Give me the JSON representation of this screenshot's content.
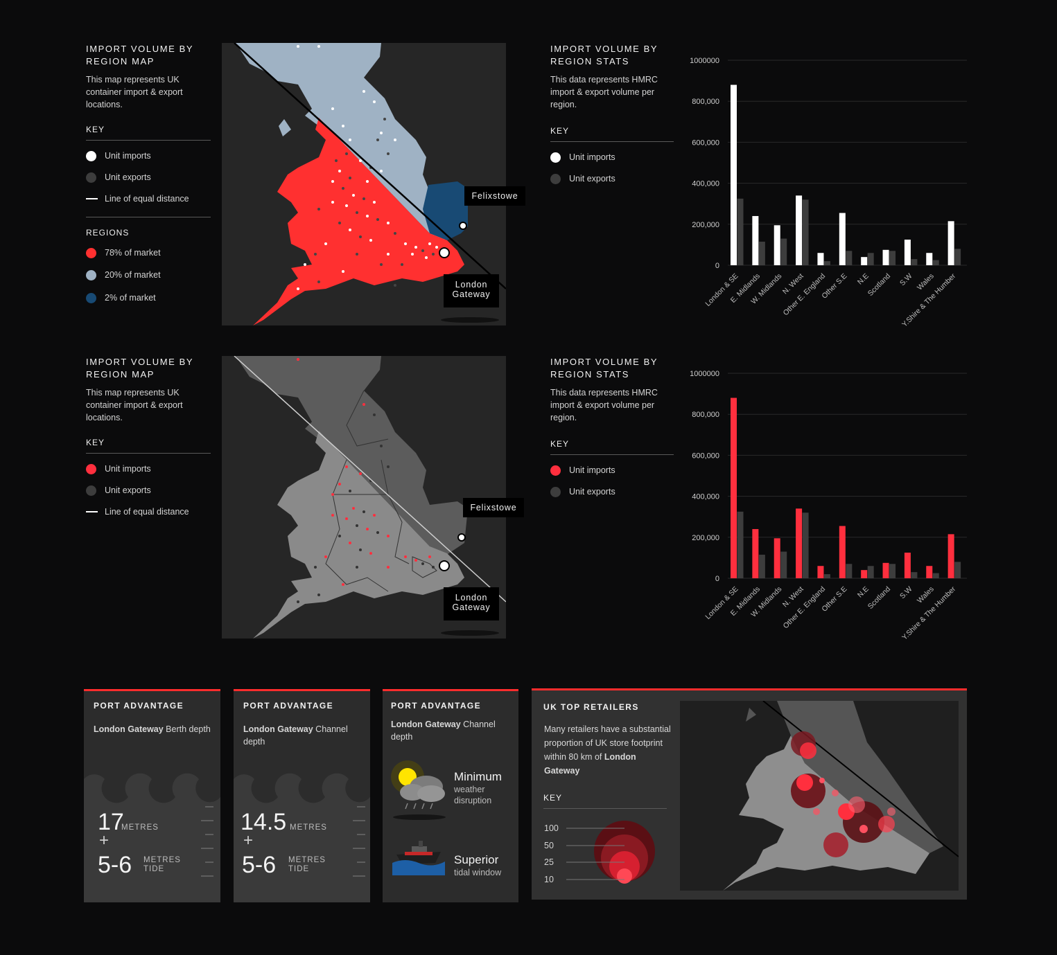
{
  "colors": {
    "import_white": "#ffffff",
    "import_red": "#ff2f3e",
    "export_grey": "#3d3d3d",
    "region_red": "#ff3030",
    "region_lightblue": "#9fb2c4",
    "region_darkblue": "#184a74",
    "accent": "#ff2d2d"
  },
  "top_map_panel": {
    "title": "IMPORT VOLUME BY REGION MAP",
    "description": "This map represents UK container import & export locations.",
    "key_heading": "KEY",
    "key_items": [
      {
        "label": "Unit imports",
        "icon": "white-dot-icon"
      },
      {
        "label": "Unit exports",
        "icon": "grey-dot-icon"
      },
      {
        "label": "Line of equal distance",
        "icon": "line-icon"
      }
    ],
    "regions_heading": "REGIONS",
    "regions": [
      {
        "label": "78% of market",
        "color": "#ff3030"
      },
      {
        "label": "20% of market",
        "color": "#9fb2c4"
      },
      {
        "label": "2% of market",
        "color": "#184a74"
      }
    ],
    "callouts": {
      "felixstowe": "Felixstowe",
      "london_gateway": "London Gateway"
    }
  },
  "top_stats_panel": {
    "title": "IMPORT VOLUME BY REGION STATS",
    "description": "This data represents HMRC import & export volume per region.",
    "key_heading": "KEY",
    "key_items": [
      {
        "label": "Unit imports",
        "icon": "white-dot-icon"
      },
      {
        "label": "Unit exports",
        "icon": "grey-dot-icon"
      }
    ]
  },
  "mid_map_panel": {
    "title": "IMPORT VOLUME BY REGION MAP",
    "description": "This map represents UK container import & export locations.",
    "key_heading": "KEY",
    "key_items": [
      {
        "label": "Unit imports",
        "icon": "red-dot-icon"
      },
      {
        "label": "Unit exports",
        "icon": "grey-dot-icon"
      },
      {
        "label": "Line of equal distance",
        "icon": "line-icon"
      }
    ],
    "callouts": {
      "felixstowe": "Felixstowe",
      "london_gateway": "London Gateway"
    }
  },
  "mid_stats_panel": {
    "title": "IMPORT VOLUME BY REGION STATS",
    "description": "This data represents HMRC import & export volume per region.",
    "key_heading": "KEY",
    "key_items": [
      {
        "label": "Unit imports",
        "icon": "red-dot-icon"
      },
      {
        "label": "Unit exports",
        "icon": "grey-dot-icon"
      }
    ]
  },
  "chart_data": [
    {
      "type": "bar",
      "title": "",
      "xlabel": "",
      "ylabel": "",
      "ylim": [
        0,
        1000000
      ],
      "yticks": [
        "1000000",
        "800,000",
        "600,000",
        "400,000",
        "200,000",
        "0"
      ],
      "categories": [
        "London & SE",
        "E. Midlands",
        "W. Midlands",
        "N. West",
        "Other E. England",
        "Other S.E",
        "N.E",
        "Scotland",
        "S.W",
        "Wales",
        "Y.Shire & The Humber"
      ],
      "series": [
        {
          "name": "Unit imports",
          "color": "#ffffff",
          "values": [
            880000,
            240000,
            195000,
            340000,
            60000,
            255000,
            40000,
            75000,
            125000,
            60000,
            215000
          ]
        },
        {
          "name": "Unit exports",
          "color": "#3d3d3d",
          "values": [
            325000,
            115000,
            130000,
            320000,
            20000,
            70000,
            60000,
            70000,
            30000,
            25000,
            80000
          ]
        }
      ],
      "grid": true
    },
    {
      "type": "bar",
      "title": "",
      "xlabel": "",
      "ylabel": "",
      "ylim": [
        0,
        1000000
      ],
      "yticks": [
        "1000000",
        "800,000",
        "600,000",
        "400,000",
        "200,000",
        "0"
      ],
      "categories": [
        "London & SE",
        "E. Midlands",
        "W. Midlands",
        "N. West",
        "Other E. England",
        "Other S.E",
        "N.E",
        "Scotland",
        "S.W",
        "Wales",
        "Y.Shire & The Humber"
      ],
      "series": [
        {
          "name": "Unit imports",
          "color": "#ff2f3e",
          "values": [
            880000,
            240000,
            195000,
            340000,
            60000,
            255000,
            40000,
            75000,
            125000,
            60000,
            215000
          ]
        },
        {
          "name": "Unit exports",
          "color": "#3d3d3d",
          "values": [
            325000,
            115000,
            130000,
            320000,
            20000,
            70000,
            60000,
            70000,
            30000,
            25000,
            80000
          ]
        }
      ],
      "grid": true
    }
  ],
  "cards": {
    "berth": {
      "title": "PORT ADVANTAGE",
      "name": "London Gateway",
      "rest": " Berth depth",
      "value1": "17",
      "unit1": "METRES",
      "plus": "+",
      "value2": "5-6",
      "unit2a": "METRES",
      "unit2b": "TIDE"
    },
    "channel": {
      "title": "PORT ADVANTAGE",
      "name": "London Gateway",
      "rest": " Channel depth",
      "value1": "14.5",
      "unit1": "METRES",
      "plus": "+",
      "value2": "5-6",
      "unit2a": "METRES",
      "unit2b": "TIDE"
    },
    "weather": {
      "title": "PORT ADVANTAGE",
      "name": "London Gateway",
      "rest": " Channel depth",
      "item1_big": "Minimum",
      "item1_small": "weather disruption",
      "item2_big": "Superior",
      "item2_small": "tidal window"
    },
    "retailers": {
      "title": "UK TOP RETAILERS",
      "desc": "Many retailers have a substantial proportion of UK store footprint within 80 km of",
      "desc_bold": "London Gateway",
      "key_heading": "KEY",
      "scale": [
        "100",
        "50",
        "25",
        "10"
      ]
    }
  }
}
